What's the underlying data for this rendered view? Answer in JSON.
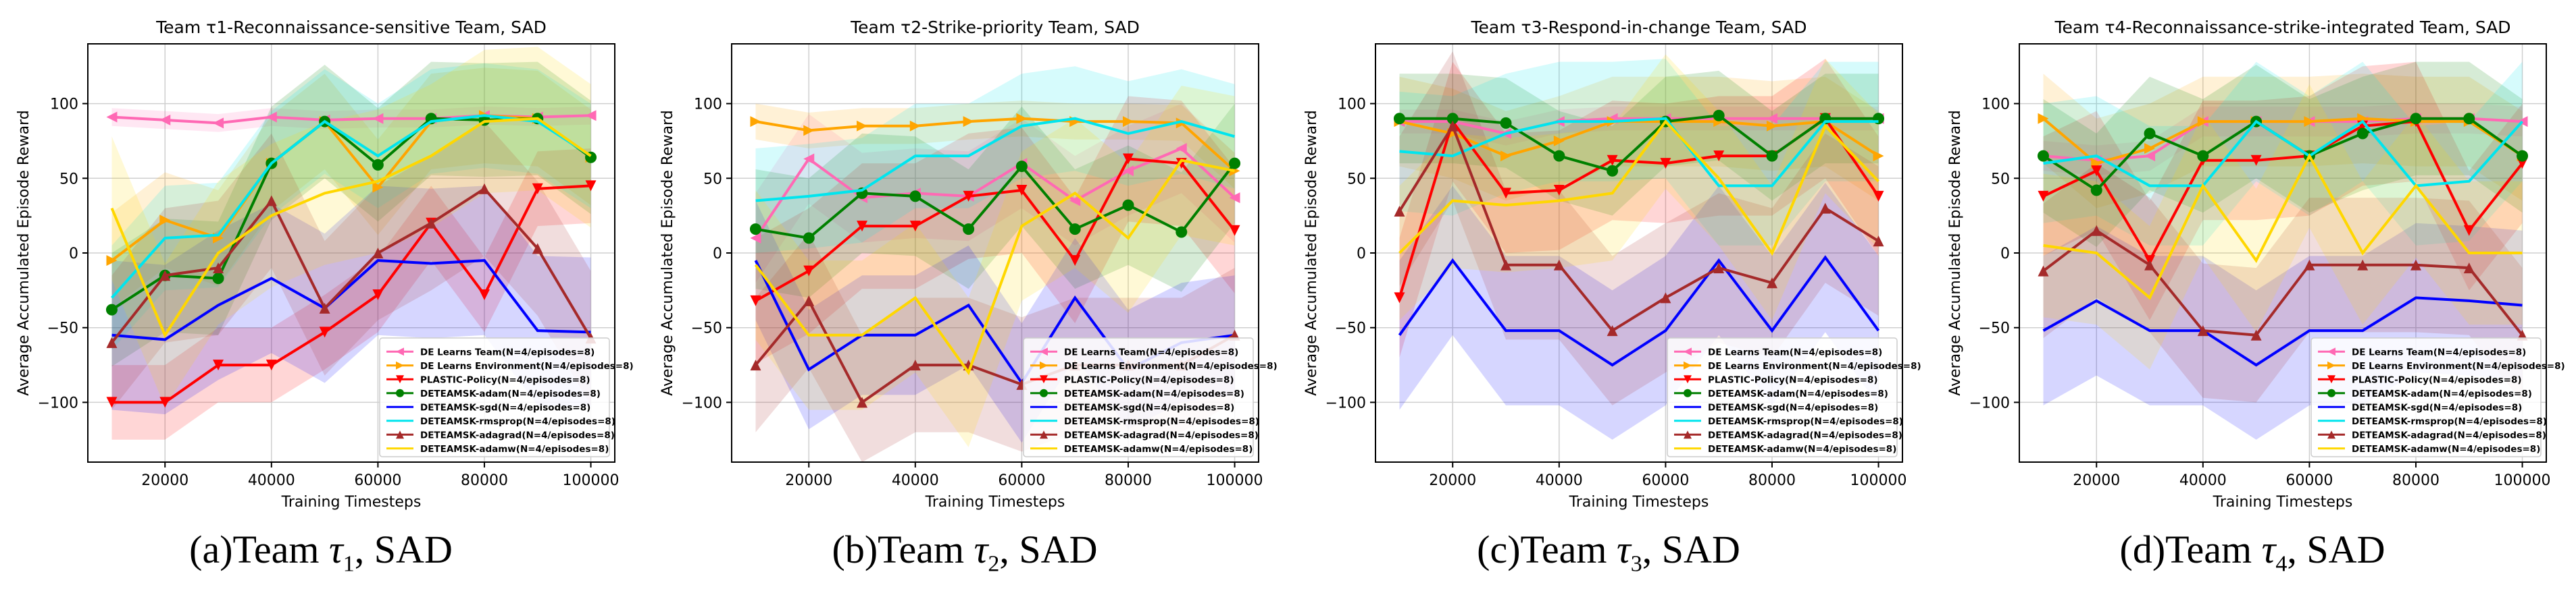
{
  "legend": [
    {
      "name": "DE Learns Team(N=4/episodes=8)",
      "color": "#ff69b4",
      "marker": "tri-left"
    },
    {
      "name": "DE Learns Environment(N=4/episodes=8)",
      "color": "#ffa500",
      "marker": "tri-right"
    },
    {
      "name": "PLASTIC-Policy(N=4/episodes=8)",
      "color": "#ff0000",
      "marker": "tri-down"
    },
    {
      "name": "DETEAMSK-adam(N=4/episodes=8)",
      "color": "#008000",
      "marker": "circle"
    },
    {
      "name": "DETEAMSK-sgd(N=4/episodes=8)",
      "color": "#0000ff",
      "marker": "none"
    },
    {
      "name": "DETEAMSK-rmsprop(N=4/episodes=8)",
      "color": "#00e5ee",
      "marker": "none"
    },
    {
      "name": "DETEAMSK-adagrad(N=4/episodes=8)",
      "color": "#a52a2a",
      "marker": "tri-up"
    },
    {
      "name": "DETEAMSK-adamw(N=4/episodes=8)",
      "color": "#ffd700",
      "marker": "none"
    }
  ],
  "captions": [
    {
      "prefix": "(a)Team ",
      "sym": "τ",
      "sub": "1",
      "suffix": ", SAD"
    },
    {
      "prefix": "(b)Team ",
      "sym": "τ",
      "sub": "2",
      "suffix": ", SAD"
    },
    {
      "prefix": "(c)Team ",
      "sym": "τ",
      "sub": "3",
      "suffix": ", SAD"
    },
    {
      "prefix": "(d)Team ",
      "sym": "τ",
      "sub": "4",
      "suffix": ", SAD"
    }
  ],
  "chart_data": [
    {
      "type": "line",
      "title": "Team τ1-Reconnaissance-sensitive Team, SAD",
      "xlabel": "Training Timesteps",
      "ylabel": "Average Accumulated Episode Reward",
      "xlim": [
        5500,
        104500
      ],
      "ylim": [
        -140,
        140
      ],
      "xticks": [
        20000,
        40000,
        60000,
        80000,
        100000
      ],
      "yticks": [
        -100,
        -50,
        0,
        50,
        100
      ],
      "grid": true,
      "legend_position": "lower-right",
      "x": [
        10000,
        20000,
        30000,
        40000,
        50000,
        60000,
        70000,
        80000,
        90000,
        100000
      ],
      "series": [
        {
          "name": "DE Learns Team(N=4/episodes=8)",
          "values": [
            91,
            89,
            87,
            91,
            89,
            90,
            90,
            92,
            91,
            92
          ],
          "band": 6
        },
        {
          "name": "DE Learns Environment(N=4/episodes=8)",
          "values": [
            -5,
            22,
            10,
            60,
            88,
            44,
            88,
            92,
            90,
            64
          ],
          "band": 32
        },
        {
          "name": "PLASTIC-Policy(N=4/episodes=8)",
          "values": [
            -100,
            -100,
            -75,
            -75,
            -53,
            -28,
            20,
            -28,
            43,
            45
          ],
          "band": 25
        },
        {
          "name": "DETEAMSK-adam(N=4/episodes=8)",
          "values": [
            -38,
            -15,
            -17,
            60,
            88,
            59,
            90,
            89,
            90,
            64
          ],
          "band": 38
        },
        {
          "name": "DETEAMSK-sgd(N=4/episodes=8)",
          "values": [
            -55,
            -58,
            -35,
            -17,
            -37,
            -5,
            -7,
            -5,
            -52,
            -53
          ],
          "band": 50
        },
        {
          "name": "DETEAMSK-rmsprop(N=4/episodes=8)",
          "values": [
            -30,
            10,
            12,
            60,
            88,
            65,
            88,
            92,
            88,
            65
          ],
          "band": 35
        },
        {
          "name": "DETEAMSK-adagrad(N=4/episodes=8)",
          "values": [
            -60,
            -15,
            -10,
            35,
            -37,
            0,
            20,
            43,
            3,
            -57
          ],
          "band": 45
        },
        {
          "name": "DETEAMSK-adamw(N=4/episodes=8)",
          "values": [
            30,
            -55,
            0,
            25,
            40,
            48,
            65,
            88,
            90,
            65
          ],
          "band": 48
        }
      ]
    },
    {
      "type": "line",
      "title": "Team τ2-Strike-priority Team, SAD",
      "xlabel": "Training Timesteps",
      "ylabel": "Average Accumulated Episode Reward",
      "xlim": [
        5500,
        104500
      ],
      "ylim": [
        -140,
        140
      ],
      "xticks": [
        20000,
        40000,
        60000,
        80000,
        100000
      ],
      "yticks": [
        -100,
        -50,
        0,
        50,
        100
      ],
      "grid": true,
      "legend_position": "lower-right",
      "x": [
        10000,
        20000,
        30000,
        40000,
        50000,
        60000,
        70000,
        80000,
        90000,
        100000
      ],
      "series": [
        {
          "name": "DE Learns Team(N=4/episodes=8)",
          "values": [
            10,
            63,
            37,
            40,
            38,
            60,
            35,
            55,
            70,
            37
          ],
          "band": 30
        },
        {
          "name": "DE Learns Environment(N=4/episodes=8)",
          "values": [
            88,
            82,
            85,
            85,
            88,
            90,
            88,
            88,
            87,
            55
          ],
          "band": 12
        },
        {
          "name": "PLASTIC-Policy(N=4/episodes=8)",
          "values": [
            -32,
            -12,
            18,
            18,
            38,
            42,
            -5,
            63,
            60,
            15
          ],
          "band": 42
        },
        {
          "name": "DETEAMSK-adam(N=4/episodes=8)",
          "values": [
            16,
            10,
            40,
            38,
            16,
            58,
            16,
            32,
            14,
            60
          ],
          "band": 40
        },
        {
          "name": "DETEAMSK-sgd(N=4/episodes=8)",
          "values": [
            -5,
            -78,
            -55,
            -55,
            -35,
            -87,
            -30,
            -78,
            -60,
            -55
          ],
          "band": 40
        },
        {
          "name": "DETEAMSK-rmsprop(N=4/episodes=8)",
          "values": [
            35,
            38,
            42,
            65,
            65,
            85,
            90,
            80,
            88,
            78
          ],
          "band": 35
        },
        {
          "name": "DETEAMSK-adagrad(N=4/episodes=8)",
          "values": [
            -75,
            -32,
            -100,
            -75,
            -75,
            -88,
            -75,
            -75,
            -75,
            -55
          ],
          "band": 45
        },
        {
          "name": "DETEAMSK-adamw(N=4/episodes=8)",
          "values": [
            -8,
            -55,
            -55,
            -30,
            -80,
            18,
            40,
            10,
            62,
            55
          ],
          "band": 50
        }
      ]
    },
    {
      "type": "line",
      "title": "Team τ3-Respond-in-change Team, SAD",
      "xlabel": "Training Timesteps",
      "ylabel": "Average Accumulated Episode Reward",
      "xlim": [
        5500,
        104500
      ],
      "ylim": [
        -140,
        140
      ],
      "xticks": [
        20000,
        40000,
        60000,
        80000,
        100000
      ],
      "yticks": [
        -100,
        -50,
        0,
        50,
        100
      ],
      "grid": true,
      "legend_position": "lower-right",
      "x": [
        10000,
        20000,
        30000,
        40000,
        50000,
        60000,
        70000,
        80000,
        90000,
        100000
      ],
      "series": [
        {
          "name": "DE Learns Team(N=4/episodes=8)",
          "values": [
            88,
            88,
            80,
            88,
            90,
            90,
            90,
            90,
            90,
            90
          ],
          "band": 8
        },
        {
          "name": "DE Learns Environment(N=4/episodes=8)",
          "values": [
            88,
            80,
            65,
            75,
            88,
            88,
            88,
            85,
            88,
            65
          ],
          "band": 30
        },
        {
          "name": "PLASTIC-Policy(N=4/episodes=8)",
          "values": [
            -30,
            88,
            40,
            42,
            62,
            60,
            65,
            65,
            90,
            38
          ],
          "band": 40
        },
        {
          "name": "DETEAMSK-adam(N=4/episodes=8)",
          "values": [
            90,
            90,
            87,
            65,
            55,
            88,
            92,
            65,
            90,
            90
          ],
          "band": 30
        },
        {
          "name": "DETEAMSK-sgd(N=4/episodes=8)",
          "values": [
            -55,
            -5,
            -52,
            -52,
            -75,
            -52,
            -5,
            -52,
            -3,
            -52
          ],
          "band": 50
        },
        {
          "name": "DETEAMSK-rmsprop(N=4/episodes=8)",
          "values": [
            68,
            65,
            80,
            88,
            88,
            90,
            45,
            45,
            88,
            88
          ],
          "band": 40
        },
        {
          "name": "DETEAMSK-adagrad(N=4/episodes=8)",
          "values": [
            28,
            85,
            -8,
            -8,
            -52,
            -30,
            -10,
            -20,
            30,
            8
          ],
          "band": 50
        },
        {
          "name": "DETEAMSK-adamw(N=4/episodes=8)",
          "values": [
            0,
            35,
            32,
            35,
            40,
            88,
            50,
            0,
            85,
            48
          ],
          "band": 45
        }
      ]
    },
    {
      "type": "line",
      "title": "Team τ4-Reconnaissance-strike-integrated Team, SAD",
      "xlabel": "Training Timesteps",
      "ylabel": "Average Accumulated Episode Reward",
      "xlim": [
        5500,
        104500
      ],
      "ylim": [
        -140,
        140
      ],
      "xticks": [
        20000,
        40000,
        60000,
        80000,
        100000
      ],
      "yticks": [
        -100,
        -50,
        0,
        50,
        100
      ],
      "grid": true,
      "legend_position": "lower-right",
      "x": [
        10000,
        20000,
        30000,
        40000,
        50000,
        60000,
        70000,
        80000,
        90000,
        100000
      ],
      "series": [
        {
          "name": "DE Learns Team(N=4/episodes=8)",
          "values": [
            65,
            62,
            65,
            88,
            88,
            88,
            88,
            90,
            90,
            88
          ],
          "band": 10
        },
        {
          "name": "DE Learns Environment(N=4/episodes=8)",
          "values": [
            90,
            60,
            70,
            88,
            88,
            88,
            90,
            88,
            88,
            65
          ],
          "band": 30
        },
        {
          "name": "PLASTIC-Policy(N=4/episodes=8)",
          "values": [
            38,
            55,
            -5,
            62,
            62,
            65,
            85,
            88,
            15,
            60
          ],
          "band": 40
        },
        {
          "name": "DETEAMSK-adam(N=4/episodes=8)",
          "values": [
            65,
            42,
            80,
            65,
            88,
            65,
            80,
            90,
            90,
            65
          ],
          "band": 38
        },
        {
          "name": "DETEAMSK-sgd(N=4/episodes=8)",
          "values": [
            -52,
            -32,
            -52,
            -52,
            -75,
            -52,
            -52,
            -30,
            -32,
            -35
          ],
          "band": 50
        },
        {
          "name": "DETEAMSK-rmsprop(N=4/episodes=8)",
          "values": [
            60,
            65,
            45,
            45,
            88,
            65,
            88,
            45,
            48,
            88
          ],
          "band": 40
        },
        {
          "name": "DETEAMSK-adagrad(N=4/episodes=8)",
          "values": [
            -12,
            15,
            -8,
            -52,
            -55,
            -8,
            -8,
            -8,
            -10,
            -55
          ],
          "band": 45
        },
        {
          "name": "DETEAMSK-adamw(N=4/episodes=8)",
          "values": [
            5,
            0,
            -30,
            45,
            -5,
            65,
            0,
            45,
            0,
            0
          ],
          "band": 48
        }
      ]
    }
  ]
}
